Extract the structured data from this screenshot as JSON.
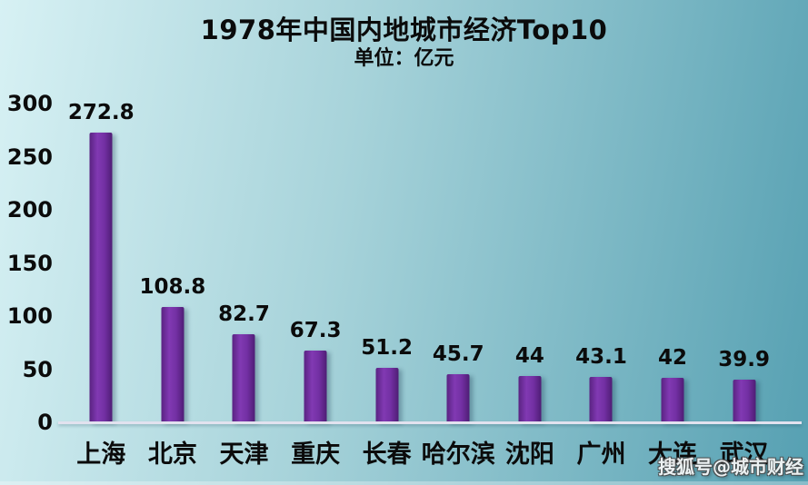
{
  "watermark": "搜狐号@城市财经",
  "colors": {
    "background_gradient_left": "#d7f1f4",
    "background_gradient_right": "#56a0b2",
    "bar_main": "#7330a4",
    "bar_edge_dark": "#4f1d75",
    "bar_highlight": "#8139b3",
    "axis_line": "#e2e2ef",
    "text": "#0b0b0b",
    "watermark_text": "#f8f8f8"
  },
  "chart_data": {
    "type": "bar",
    "title": "1978年中国内地城市经济Top10",
    "subtitle": "单位：亿元",
    "categories": [
      "上海",
      "北京",
      "天津",
      "重庆",
      "长春",
      "哈尔滨",
      "沈阳",
      "广州",
      "大连",
      "武汉"
    ],
    "values": [
      272.8,
      108.8,
      82.7,
      67.3,
      51.2,
      45.7,
      44,
      43.1,
      42,
      39.9
    ],
    "value_labels": [
      "272.8",
      "108.8",
      "82.7",
      "67.3",
      "51.2",
      "45.7",
      "44",
      "43.1",
      "42",
      "39.9"
    ],
    "xlabel": "",
    "ylabel": "",
    "ylim": [
      0,
      300
    ],
    "yticks": [
      0,
      50,
      100,
      150,
      200,
      250,
      300
    ],
    "grid": false,
    "legend": false,
    "bar_color": "#7330a4"
  }
}
